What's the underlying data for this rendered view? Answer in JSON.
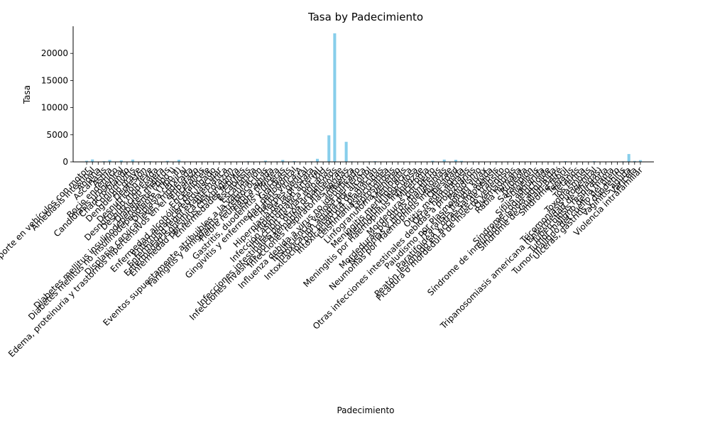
{
  "chart_data": {
    "type": "bar",
    "title": "Tasa by Padecimiento",
    "xlabel": "Padecimiento",
    "ylabel": "Tasa",
    "ylim": [
      0,
      25000
    ],
    "yticks": [
      0,
      5000,
      10000,
      15000,
      20000
    ],
    "grid": false,
    "legend": "none",
    "colors": {
      "bar": "#87ceeb",
      "axis": "#000000",
      "text": "#000000"
    },
    "categories": [
      "Accidentes de transporte en vehículos con motor",
      "Amebiasis intestinal",
      "Angina",
      "Ascariasis",
      "Asma",
      "Bocio endémico",
      "Candidiasis urogenital",
      "Chancro blando",
      "Conjuntivitis",
      "Dengue no grave",
      "Depresión",
      "Desnutrición leve",
      "Desnutrición moderada",
      "Desnutrición severa",
      "Diabetes mellitus",
      "Diabetes mellitus insulinodependiente (Tipo I)",
      "Diabetes mellitus no insulinodependiente (Tipo II)",
      "Displasia cervical",
      "Displasia cervical leve y moderada",
      "Edema, proteinuria y trastornos hipertensivos en el embarazo",
      "Encefalitis",
      "Encefalocele",
      "Enfermedad alcohólica del hígado",
      "Enfermedad cerebrovascular",
      "Enfermedad febril exantemática",
      "Enfermedad isquémica del corazón",
      "Enfermedad por virus Chikungunya",
      "Enfermedades febriles",
      "Escabiosis",
      "Escarlatina",
      "Eventos supuestamente atribuibles a la vacunación",
      "Faringitis y amigdalitis estreptocócicas",
      "Fiebre reumática aguda",
      "Fiebre tifoidea",
      "Gastritis, duodenitis y úlceras",
      "Giardiasis",
      "Gingivitis y enfermedad periodontal",
      "Hepatitis vírica A",
      "Herpes genital",
      "Hiperplasia de la próstata",
      "Hipertensión arterial",
      "Infección asintomática por VIH",
      "Infección de vías urinarias",
      "Infecciones intestinales por otros organismos",
      "Infecciones invasivas por Haemophilus influenzae",
      "Infecciones respiratorias agudas",
      "Influenza",
      "Influenza debida a virus no identificado",
      "Insuficiencia venosa periférica",
      "Intoxicación aguda por alcohol",
      "Intoxicación por picadura de alacrán",
      "Intoxicación por plaguicidas",
      "Leishmaniasis cutánea",
      "Leptospirosis",
      "Linfogranuloma venéreo",
      "Meningitis",
      "Meningitis meningocócica",
      "Meningitis tuberculosa",
      "Meningitis por Haemophilus influenzae",
      "Micetoma",
      "Mordeduras por perro",
      "Mordeduras por otros mamíferos",
      "Neumonías y bronconeumonías",
      "Neumonías por Haemophilus influenzae",
      "Obesidad",
      "Otitis media aguda",
      "Otras helmintiasis",
      "Otras infecciones intestinales debidas a protozoarios",
      "Paludismo",
      "Paludismo por Plasmodium vivax",
      "Parálisis flácida aguda",
      "Paratifoidea y otras salmonelosis",
      "Peatón lesionado en accidente de tránsito",
      "Picadura o mordedura de insecto venenoso",
      "Quemaduras",
      "Rabia humana",
      "Rubéola",
      "Sarampión",
      "Shigelosis",
      "Sífilis adquirida",
      "Síndrome coqueluchoide",
      "Síndrome de inmunodeficiencia adquirida",
      "Síndrome de Guillain-Barré",
      "Síndrome febril",
      "Teniasis",
      "Tétanos",
      "Tos ferina",
      "Toxoplasmosis",
      "Tricomoniasis urogenital",
      "Tripanosomiasis americana (Enfermedad de Chagas)",
      "Tuberculosis respiratoria",
      "Tumor maligno de la mama",
      "Tumor maligno del cuello del útero",
      "Úlceras, gastritis y duodenitis",
      "Vaginitis aguda",
      "Varicela",
      "Violencia intrafamiliar"
    ],
    "values": [
      200,
      450,
      60,
      120,
      350,
      20,
      280,
      10,
      420,
      30,
      90,
      110,
      40,
      15,
      180,
      60,
      380,
      40,
      70,
      60,
      10,
      5,
      30,
      45,
      30,
      60,
      20,
      40,
      110,
      15,
      25,
      220,
      10,
      80,
      350,
      40,
      150,
      10,
      30,
      90,
      560,
      10,
      4900,
      23700,
      10,
      3700,
      90,
      40,
      70,
      90,
      120,
      40,
      15,
      10,
      5,
      20,
      5,
      5,
      5,
      10,
      200,
      40,
      420,
      10,
      380,
      180,
      60,
      90,
      10,
      20,
      10,
      90,
      40,
      80,
      60,
      5,
      5,
      5,
      30,
      20,
      10,
      40,
      10,
      120,
      20,
      5,
      10,
      40,
      120,
      10,
      60,
      30,
      20,
      100,
      1450,
      170,
      320
    ]
  }
}
